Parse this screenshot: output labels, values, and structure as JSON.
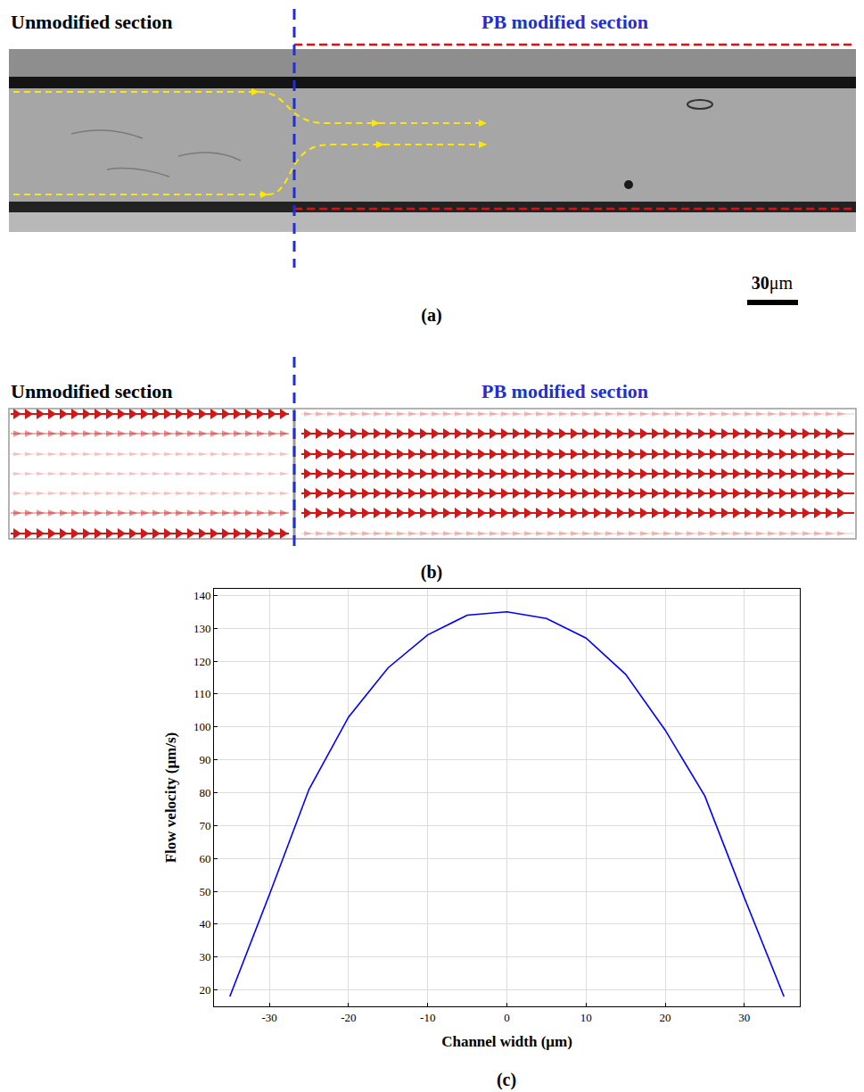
{
  "panel_a": {
    "label": "(a)",
    "left_section": "Unmodified section",
    "right_section": "PB modified section",
    "scale_bar": {
      "value": 30,
      "unit": "μm"
    }
  },
  "panel_b": {
    "label": "(b)",
    "left_section": "Unmodified section",
    "right_section": "PB modified section"
  },
  "chart_data": {
    "label": "(c)",
    "type": "line",
    "x_label": "Channel width (μm)",
    "y_label": "Flow velocity (μm/s)",
    "x": [
      -35,
      -30,
      -25,
      -20,
      -15,
      -10,
      -5,
      0,
      5,
      10,
      15,
      20,
      25,
      30,
      35
    ],
    "values": [
      18,
      49,
      81,
      103,
      118,
      128,
      134,
      135,
      133,
      127,
      116,
      99,
      79,
      48,
      18
    ],
    "color": "#0000ff",
    "xlim": [
      -37,
      37
    ],
    "xticks": [
      -30,
      -20,
      -10,
      0,
      10,
      20,
      30
    ],
    "ylim": [
      15,
      142
    ],
    "yticks": [
      20,
      30,
      40,
      50,
      60,
      70,
      80,
      90,
      100,
      110,
      120,
      130,
      140
    ],
    "grid": true
  }
}
